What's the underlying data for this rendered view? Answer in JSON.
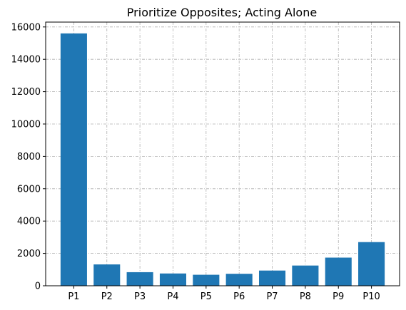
{
  "chart_data": {
    "type": "bar",
    "title": "Prioritize Opposites; Acting Alone",
    "xlabel": "",
    "ylabel": "",
    "categories": [
      "P1",
      "P2",
      "P3",
      "P4",
      "P5",
      "P6",
      "P7",
      "P8",
      "P9",
      "P10"
    ],
    "values": [
      15600,
      1320,
      840,
      760,
      680,
      740,
      940,
      1250,
      1740,
      2700
    ],
    "ylim": [
      0,
      16300
    ],
    "yticks": [
      0,
      2000,
      4000,
      6000,
      8000,
      10000,
      12000,
      14000,
      16000
    ],
    "grid": true,
    "legend": "none",
    "bar_color": "#1f77b4"
  }
}
